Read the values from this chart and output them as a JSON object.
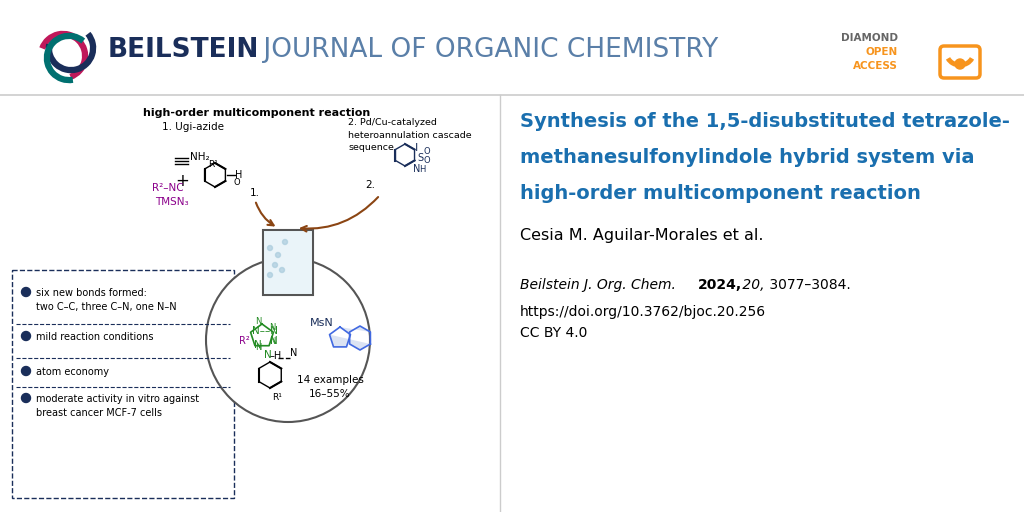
{
  "bg_color": "#ffffff",
  "logo_text_bold": "BEILSTEIN",
  "logo_text_rest": " JOURNAL OF ORGANIC CHEMISTRY",
  "logo_color_bold": "#1a2e5a",
  "logo_color_rest": "#5a7fa8",
  "article_title_line1": "Synthesis of the 1,5-disubstituted tetrazole-",
  "article_title_line2": "methanesulfonylindole hybrid system via",
  "article_title_line3": "high-order multicomponent reaction",
  "article_title_color": "#1a6faf",
  "authors": "Cesia M. Aguilar-Morales et al.",
  "journal_italic": "Beilstein J. Org. Chem. ",
  "journal_bold": "2024,",
  "journal_italic2": " 20,",
  "journal_rest": " 3077–3084.",
  "doi_text": "https://doi.org/10.3762/bjoc.20.256",
  "cc_text": "CC BY 4.0",
  "diamond_color": "#f7941d",
  "diamond_gray": "#666666",
  "reaction_title": "high-order multicomponent reaction",
  "bullet_items": [
    "six new bonds formed:\ntwo C–C, three C–N, one N–N",
    "mild reaction conditions",
    "atom economy",
    "moderate activity in vitro against\nbreast cancer MCF-7 cells"
  ],
  "bullet_color": "#1a2e5a",
  "pink_color": "#c0185a",
  "teal_color": "#007070",
  "navy_color": "#1a2e5a",
  "purple_color": "#8b008b",
  "green_color": "#228b22",
  "blue_color": "#4169e1",
  "brown_color": "#8b4513"
}
